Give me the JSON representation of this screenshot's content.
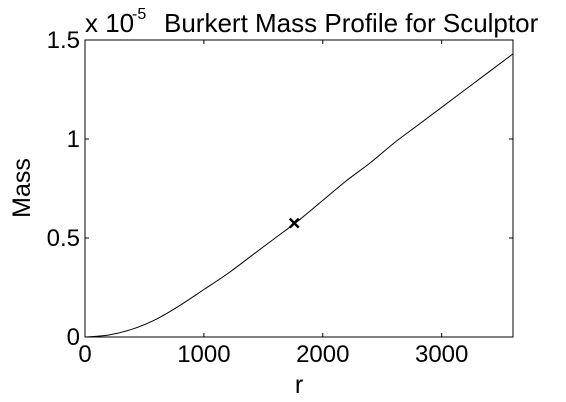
{
  "chart_data": {
    "type": "line",
    "title": "Burkert Mass Profile for Sculptor",
    "xlabel": "r",
    "ylabel": "Mass",
    "y_scale_prefix": "x 10",
    "y_scale_exponent": "-5",
    "xlim": [
      0,
      3600
    ],
    "ylim": [
      0,
      1.5
    ],
    "x_ticks": [
      0,
      1000,
      2000,
      3000
    ],
    "x_tick_labels": [
      "0",
      "1000",
      "2000",
      "3000"
    ],
    "y_ticks": [
      0,
      0.5,
      1,
      1.5
    ],
    "y_tick_labels": [
      "0",
      "0.5",
      "1",
      "1.5"
    ],
    "grid": false,
    "line_color": "#000000",
    "series": [
      {
        "x": [
          0,
          200,
          400,
          600,
          800,
          1000,
          1200,
          1400,
          1600,
          1800,
          2000,
          2200,
          2400,
          2600,
          2800,
          3000,
          3200,
          3400,
          3600
        ],
        "y": [
          0,
          0.01,
          0.04,
          0.09,
          0.16,
          0.24,
          0.32,
          0.41,
          0.5,
          0.59,
          0.69,
          0.79,
          0.88,
          0.98,
          1.07,
          1.16,
          1.25,
          1.34,
          1.43
        ]
      }
    ],
    "marker": {
      "x": 1760,
      "y": 0.575,
      "symbol": "x",
      "color": "#000000"
    }
  }
}
